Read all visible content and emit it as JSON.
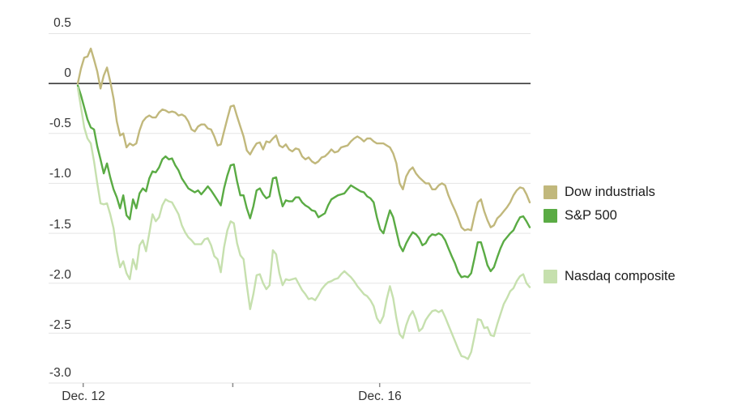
{
  "chart_data": {
    "type": "line",
    "grid": true,
    "legend_position": "right",
    "ylim": [
      -3.0,
      0.5
    ],
    "yaxis": {
      "ticks": [
        {
          "value": 0.5,
          "label": "0.5"
        },
        {
          "value": 0,
          "label": "0"
        },
        {
          "value": -0.5,
          "label": "-0.5"
        },
        {
          "value": -1.0,
          "label": "-1.0"
        },
        {
          "value": -1.5,
          "label": "-1.5"
        },
        {
          "value": -2.0,
          "label": "-2.0"
        },
        {
          "value": -2.5,
          "label": "-2.5"
        },
        {
          "value": -3.0,
          "label": "-3.0"
        }
      ]
    },
    "xaxis": {
      "ticks": [
        {
          "pos": 0.012,
          "label": "Dec. 12"
        },
        {
          "pos": 0.343,
          "label": ""
        },
        {
          "pos": 0.668,
          "label": "Dec. 16"
        }
      ]
    },
    "series": [
      {
        "id": "dow",
        "name": "Dow industrials",
        "color": "#c1b87c",
        "values": [
          0.0,
          0.15,
          0.26,
          0.27,
          0.35,
          0.24,
          0.12,
          -0.05,
          0.08,
          0.16,
          0.02,
          -0.15,
          -0.38,
          -0.52,
          -0.5,
          -0.64,
          -0.6,
          -0.62,
          -0.6,
          -0.47,
          -0.38,
          -0.34,
          -0.32,
          -0.34,
          -0.34,
          -0.29,
          -0.26,
          -0.27,
          -0.29,
          -0.28,
          -0.29,
          -0.32,
          -0.31,
          -0.33,
          -0.38,
          -0.46,
          -0.48,
          -0.43,
          -0.41,
          -0.41,
          -0.45,
          -0.46,
          -0.53,
          -0.62,
          -0.61,
          -0.48,
          -0.35,
          -0.23,
          -0.22,
          -0.33,
          -0.43,
          -0.53,
          -0.67,
          -0.71,
          -0.65,
          -0.6,
          -0.59,
          -0.66,
          -0.58,
          -0.59,
          -0.55,
          -0.52,
          -0.62,
          -0.64,
          -0.61,
          -0.66,
          -0.68,
          -0.65,
          -0.66,
          -0.73,
          -0.76,
          -0.74,
          -0.78,
          -0.8,
          -0.78,
          -0.74,
          -0.73,
          -0.7,
          -0.66,
          -0.69,
          -0.68,
          -0.64,
          -0.63,
          -0.62,
          -0.58,
          -0.55,
          -0.53,
          -0.55,
          -0.58,
          -0.55,
          -0.55,
          -0.58,
          -0.6,
          -0.6,
          -0.6,
          -0.62,
          -0.64,
          -0.7,
          -0.8,
          -1.0,
          -1.06,
          -0.93,
          -0.87,
          -0.84,
          -0.9,
          -0.94,
          -0.97,
          -1.0,
          -1.0,
          -1.06,
          -1.06,
          -1.02,
          -1.0,
          -1.02,
          -1.12,
          -1.2,
          -1.27,
          -1.35,
          -1.44,
          -1.47,
          -1.46,
          -1.47,
          -1.32,
          -1.19,
          -1.16,
          -1.28,
          -1.37,
          -1.44,
          -1.42,
          -1.35,
          -1.32,
          -1.28,
          -1.24,
          -1.19,
          -1.12,
          -1.07,
          -1.04,
          -1.05,
          -1.11,
          -1.19
        ]
      },
      {
        "id": "sp500",
        "name": "S&P 500",
        "color": "#5aab44",
        "values": [
          -0.02,
          -0.12,
          -0.24,
          -0.36,
          -0.44,
          -0.46,
          -0.63,
          -0.76,
          -0.9,
          -0.8,
          -0.94,
          -1.06,
          -1.14,
          -1.25,
          -1.12,
          -1.32,
          -1.36,
          -1.16,
          -1.25,
          -1.1,
          -1.05,
          -1.08,
          -0.95,
          -0.88,
          -0.89,
          -0.84,
          -0.76,
          -0.73,
          -0.76,
          -0.75,
          -0.82,
          -0.87,
          -0.95,
          -1.0,
          -1.05,
          -1.07,
          -1.09,
          -1.07,
          -1.11,
          -1.07,
          -1.03,
          -1.07,
          -1.12,
          -1.17,
          -1.22,
          -1.05,
          -0.92,
          -0.82,
          -0.81,
          -0.98,
          -1.12,
          -1.12,
          -1.25,
          -1.35,
          -1.23,
          -1.07,
          -1.05,
          -1.11,
          -1.15,
          -1.13,
          -0.95,
          -0.94,
          -1.1,
          -1.23,
          -1.17,
          -1.18,
          -1.18,
          -1.14,
          -1.14,
          -1.19,
          -1.22,
          -1.24,
          -1.27,
          -1.28,
          -1.34,
          -1.32,
          -1.3,
          -1.22,
          -1.16,
          -1.14,
          -1.12,
          -1.11,
          -1.1,
          -1.06,
          -1.02,
          -1.04,
          -1.06,
          -1.08,
          -1.09,
          -1.13,
          -1.15,
          -1.19,
          -1.34,
          -1.46,
          -1.5,
          -1.38,
          -1.27,
          -1.34,
          -1.48,
          -1.62,
          -1.68,
          -1.6,
          -1.54,
          -1.49,
          -1.51,
          -1.55,
          -1.62,
          -1.6,
          -1.54,
          -1.51,
          -1.52,
          -1.5,
          -1.52,
          -1.57,
          -1.65,
          -1.73,
          -1.8,
          -1.89,
          -1.94,
          -1.93,
          -1.94,
          -1.9,
          -1.75,
          -1.59,
          -1.59,
          -1.7,
          -1.82,
          -1.88,
          -1.84,
          -1.74,
          -1.65,
          -1.58,
          -1.54,
          -1.5,
          -1.47,
          -1.4,
          -1.34,
          -1.33,
          -1.38,
          -1.44
        ]
      },
      {
        "id": "nasdaq",
        "name": "Nasdaq composite",
        "color": "#c6e0ae",
        "values": [
          -0.04,
          -0.24,
          -0.44,
          -0.55,
          -0.6,
          -0.78,
          -1.0,
          -1.2,
          -1.21,
          -1.2,
          -1.31,
          -1.45,
          -1.68,
          -1.84,
          -1.78,
          -1.9,
          -1.96,
          -1.76,
          -1.86,
          -1.62,
          -1.57,
          -1.68,
          -1.5,
          -1.31,
          -1.38,
          -1.34,
          -1.22,
          -1.16,
          -1.18,
          -1.19,
          -1.25,
          -1.31,
          -1.42,
          -1.49,
          -1.54,
          -1.57,
          -1.61,
          -1.61,
          -1.61,
          -1.56,
          -1.55,
          -1.62,
          -1.73,
          -1.76,
          -1.89,
          -1.64,
          -1.47,
          -1.38,
          -1.4,
          -1.6,
          -1.72,
          -1.76,
          -2.02,
          -2.26,
          -2.11,
          -1.92,
          -1.91,
          -2.0,
          -2.06,
          -2.02,
          -1.67,
          -1.71,
          -1.9,
          -2.02,
          -1.96,
          -1.97,
          -1.96,
          -1.95,
          -2.01,
          -2.07,
          -2.11,
          -2.16,
          -2.15,
          -2.17,
          -2.12,
          -2.06,
          -2.02,
          -1.99,
          -1.98,
          -1.96,
          -1.95,
          -1.91,
          -1.88,
          -1.91,
          -1.94,
          -1.98,
          -2.03,
          -2.07,
          -2.11,
          -2.13,
          -2.17,
          -2.23,
          -2.35,
          -2.4,
          -2.33,
          -2.16,
          -2.03,
          -2.15,
          -2.35,
          -2.51,
          -2.55,
          -2.42,
          -2.33,
          -2.28,
          -2.36,
          -2.48,
          -2.45,
          -2.37,
          -2.32,
          -2.28,
          -2.27,
          -2.29,
          -2.27,
          -2.34,
          -2.42,
          -2.5,
          -2.58,
          -2.66,
          -2.73,
          -2.74,
          -2.76,
          -2.69,
          -2.53,
          -2.36,
          -2.37,
          -2.45,
          -2.44,
          -2.52,
          -2.53,
          -2.41,
          -2.31,
          -2.21,
          -2.15,
          -2.08,
          -2.05,
          -1.98,
          -1.93,
          -1.91,
          -2.0,
          -2.04
        ]
      }
    ],
    "colors": {
      "gridline": "#e5e5e5",
      "zero_line": "#474747",
      "axis_tick": "#8a8a8a",
      "label_text": "#333333"
    }
  }
}
